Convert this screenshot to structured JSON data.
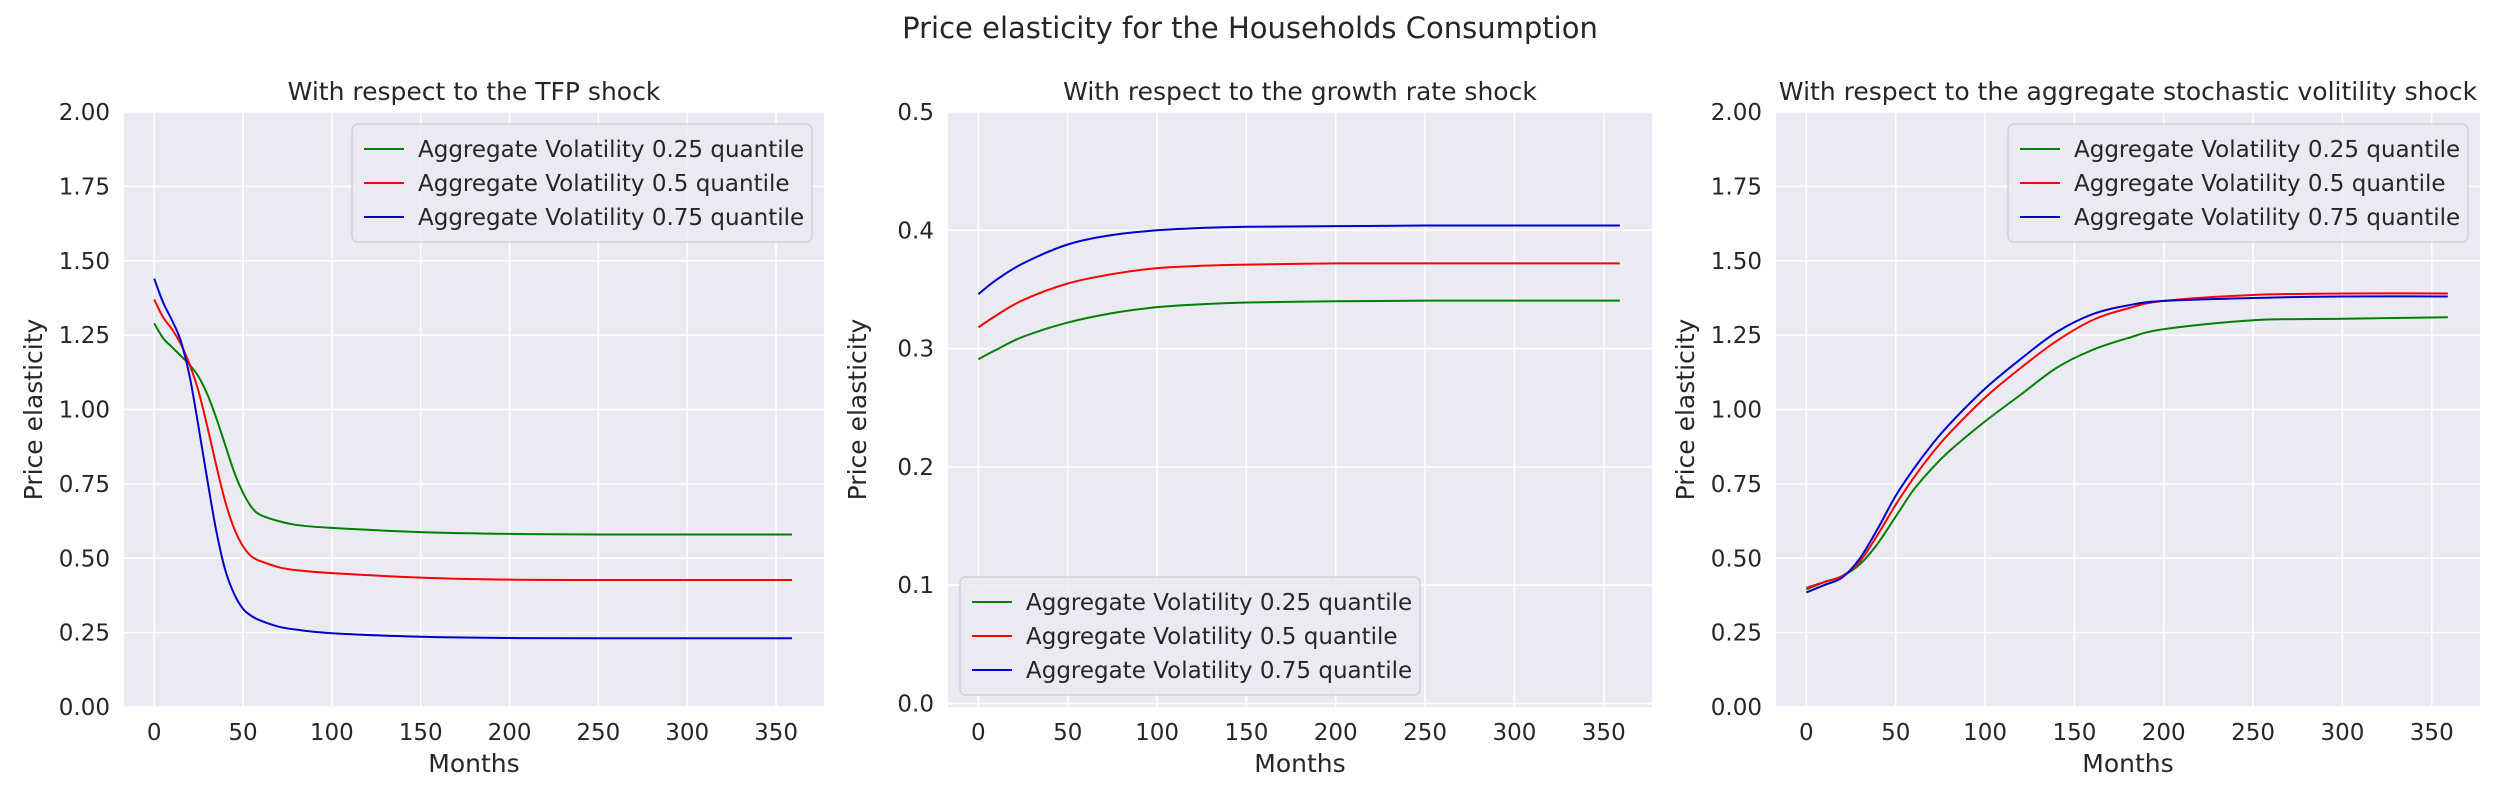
{
  "figure": {
    "suptitle": "Price elasticity for the Households Consumption"
  },
  "chart_data": [
    {
      "type": "line",
      "title": "With respect to the TFP shock",
      "xlabel": "Months",
      "ylabel": "Price elasticity",
      "xlim": [
        -17,
        377
      ],
      "ylim": [
        0,
        2.0
      ],
      "xticks": [
        0,
        50,
        100,
        150,
        200,
        250,
        300,
        350
      ],
      "yticks": [
        0,
        0.25,
        0.5,
        0.75,
        1.0,
        1.25,
        1.5,
        1.75,
        2.0
      ],
      "ytick_labels": [
        "0.00",
        "0.25",
        "0.50",
        "0.75",
        "1.00",
        "1.25",
        "1.50",
        "1.75",
        "2.00"
      ],
      "grid": true,
      "legend_position": "upper right",
      "series": [
        {
          "name": "Aggregate Volatility 0.25 quantile",
          "color": "#008000",
          "x": [
            0,
            5,
            10,
            15,
            20,
            25,
            30,
            35,
            40,
            45,
            50,
            55,
            60,
            70,
            80,
            100,
            150,
            200,
            250,
            300,
            359
          ],
          "y": [
            1.29,
            1.24,
            1.21,
            1.18,
            1.15,
            1.11,
            1.05,
            0.97,
            0.88,
            0.79,
            0.72,
            0.67,
            0.645,
            0.625,
            0.612,
            0.602,
            0.588,
            0.582,
            0.58,
            0.58,
            0.58
          ]
        },
        {
          "name": "Aggregate Volatility 0.5 quantile",
          "color": "#ff0000",
          "x": [
            0,
            5,
            10,
            15,
            20,
            25,
            30,
            35,
            40,
            45,
            50,
            55,
            60,
            70,
            80,
            100,
            150,
            200,
            250,
            300,
            359
          ],
          "y": [
            1.37,
            1.31,
            1.27,
            1.22,
            1.15,
            1.06,
            0.94,
            0.81,
            0.69,
            0.6,
            0.54,
            0.505,
            0.49,
            0.47,
            0.46,
            0.45,
            0.435,
            0.428,
            0.427,
            0.427,
            0.427
          ]
        },
        {
          "name": "Aggregate Volatility 0.75 quantile",
          "color": "#0000cc",
          "x": [
            0,
            5,
            10,
            15,
            20,
            25,
            30,
            35,
            40,
            45,
            50,
            55,
            60,
            70,
            80,
            100,
            150,
            200,
            250,
            300,
            359
          ],
          "y": [
            1.44,
            1.36,
            1.3,
            1.23,
            1.11,
            0.94,
            0.76,
            0.59,
            0.46,
            0.38,
            0.33,
            0.305,
            0.29,
            0.27,
            0.26,
            0.248,
            0.236,
            0.232,
            0.231,
            0.231,
            0.231
          ]
        }
      ]
    },
    {
      "type": "line",
      "title": "With respect to the growth rate shock",
      "xlabel": "Months",
      "ylabel": "Price elasticity",
      "xlim": [
        -17,
        377
      ],
      "ylim": [
        -0.003,
        0.5
      ],
      "xticks": [
        0,
        50,
        100,
        150,
        200,
        250,
        300,
        350
      ],
      "yticks": [
        0.0,
        0.1,
        0.2,
        0.3,
        0.4,
        0.5
      ],
      "ytick_labels": [
        "0.0",
        "0.1",
        "0.2",
        "0.3",
        "0.4",
        "0.5"
      ],
      "grid": true,
      "legend_position": "lower left",
      "series": [
        {
          "name": "Aggregate Volatility 0.25 quantile",
          "color": "#008000",
          "x": [
            0,
            10,
            25,
            50,
            75,
            100,
            125,
            150,
            200,
            250,
            300,
            359
          ],
          "y": [
            0.291,
            0.299,
            0.31,
            0.322,
            0.33,
            0.335,
            0.3375,
            0.339,
            0.34,
            0.3405,
            0.3405,
            0.3405
          ]
        },
        {
          "name": "Aggregate Volatility 0.5 quantile",
          "color": "#ff0000",
          "x": [
            0,
            10,
            25,
            50,
            75,
            100,
            125,
            150,
            200,
            250,
            300,
            359
          ],
          "y": [
            0.318,
            0.328,
            0.341,
            0.355,
            0.363,
            0.368,
            0.37,
            0.371,
            0.372,
            0.372,
            0.372,
            0.372
          ]
        },
        {
          "name": "Aggregate Volatility 0.75 quantile",
          "color": "#0000cc",
          "x": [
            0,
            10,
            25,
            50,
            75,
            100,
            125,
            150,
            200,
            250,
            300,
            359
          ],
          "y": [
            0.346,
            0.358,
            0.372,
            0.388,
            0.396,
            0.4,
            0.402,
            0.403,
            0.4035,
            0.404,
            0.404,
            0.404
          ]
        }
      ]
    },
    {
      "type": "line",
      "title": "With respect to the aggregate stochastic volitility shock",
      "xlabel": "Months",
      "ylabel": "Price elasticity",
      "xlim": [
        -17,
        377
      ],
      "ylim": [
        0,
        2.0
      ],
      "xticks": [
        0,
        50,
        100,
        150,
        200,
        250,
        300,
        350
      ],
      "yticks": [
        0,
        0.25,
        0.5,
        0.75,
        1.0,
        1.25,
        1.5,
        1.75,
        2.0
      ],
      "ytick_labels": [
        "0.00",
        "0.25",
        "0.50",
        "0.75",
        "1.00",
        "1.25",
        "1.50",
        "1.75",
        "2.00"
      ],
      "grid": true,
      "legend_position": "upper right",
      "series": [
        {
          "name": "Aggregate Volatility 0.25 quantile",
          "color": "#008000",
          "x": [
            0,
            10,
            20,
            30,
            40,
            50,
            60,
            70,
            80,
            100,
            120,
            140,
            160,
            180,
            200,
            250,
            300,
            359
          ],
          "y": [
            0.395,
            0.42,
            0.44,
            0.48,
            0.55,
            0.64,
            0.73,
            0.8,
            0.86,
            0.96,
            1.05,
            1.14,
            1.2,
            1.24,
            1.27,
            1.3,
            1.305,
            1.31
          ]
        },
        {
          "name": "Aggregate Volatility 0.5 quantile",
          "color": "#ff0000",
          "x": [
            0,
            10,
            20,
            30,
            40,
            50,
            60,
            70,
            80,
            100,
            120,
            140,
            160,
            180,
            200,
            250,
            300,
            359
          ],
          "y": [
            0.4,
            0.42,
            0.44,
            0.49,
            0.58,
            0.68,
            0.77,
            0.85,
            0.92,
            1.04,
            1.14,
            1.23,
            1.3,
            1.34,
            1.365,
            1.385,
            1.39,
            1.39
          ]
        },
        {
          "name": "Aggregate Volatility 0.75 quantile",
          "color": "#0000cc",
          "x": [
            0,
            10,
            20,
            30,
            40,
            50,
            60,
            70,
            80,
            100,
            120,
            140,
            160,
            180,
            200,
            250,
            300,
            359
          ],
          "y": [
            0.385,
            0.41,
            0.435,
            0.5,
            0.6,
            0.71,
            0.8,
            0.88,
            0.95,
            1.07,
            1.17,
            1.26,
            1.32,
            1.35,
            1.365,
            1.375,
            1.38,
            1.38
          ]
        }
      ]
    }
  ]
}
